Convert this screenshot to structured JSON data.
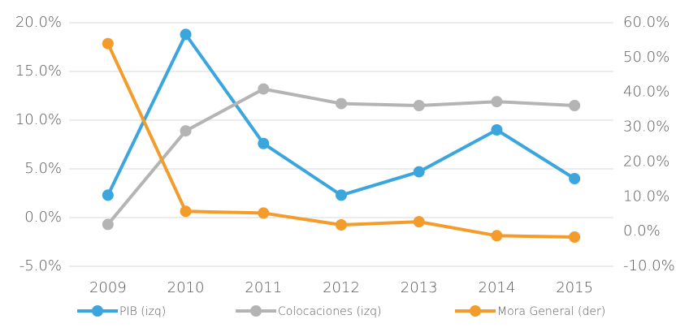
{
  "chart_data": {
    "type": "line",
    "categories": [
      "2009",
      "2010",
      "2011",
      "2012",
      "2013",
      "2014",
      "2015"
    ],
    "series": [
      {
        "name": "PIB (izq)",
        "color": "#3aa6dd",
        "values": [
          2.3,
          18.8,
          7.6,
          2.3,
          4.7,
          9.0,
          4.0
        ]
      },
      {
        "name": "Colocaciones (izq)",
        "color": "#b4b4b4",
        "values": [
          -0.7,
          8.9,
          13.2,
          11.7,
          11.5,
          11.9,
          11.5
        ]
      },
      {
        "name": "Mora General (der)",
        "color": "#f39c2b",
        "axis": "y2",
        "values": [
          54,
          5.8,
          5.3,
          1.9,
          2.8,
          -1.2,
          -1.6
        ]
      }
    ],
    "ylim": [
      -5,
      20
    ],
    "yticks": [
      {
        "value": -5,
        "label": "-5.0%"
      },
      {
        "value": 0,
        "label": "0.0%"
      },
      {
        "value": 5,
        "label": "5.0%"
      },
      {
        "value": 10,
        "label": "10.0%"
      },
      {
        "value": 15,
        "label": "15.0%"
      },
      {
        "value": 20,
        "label": "20.0%"
      }
    ],
    "y2lim": [
      -10,
      60
    ],
    "y2ticks": [
      {
        "value": -10,
        "label": "-10.0%"
      },
      {
        "value": 0,
        "label": "0.0%"
      },
      {
        "value": 10,
        "label": "10.0%"
      },
      {
        "value": 20,
        "label": "20.0%"
      },
      {
        "value": 30,
        "label": "30.0%"
      },
      {
        "value": 40,
        "label": "40.0%"
      },
      {
        "value": 50,
        "label": "50.0%"
      },
      {
        "value": 60,
        "label": "60.0%"
      }
    ],
    "grid": true,
    "legend": "bottom"
  }
}
